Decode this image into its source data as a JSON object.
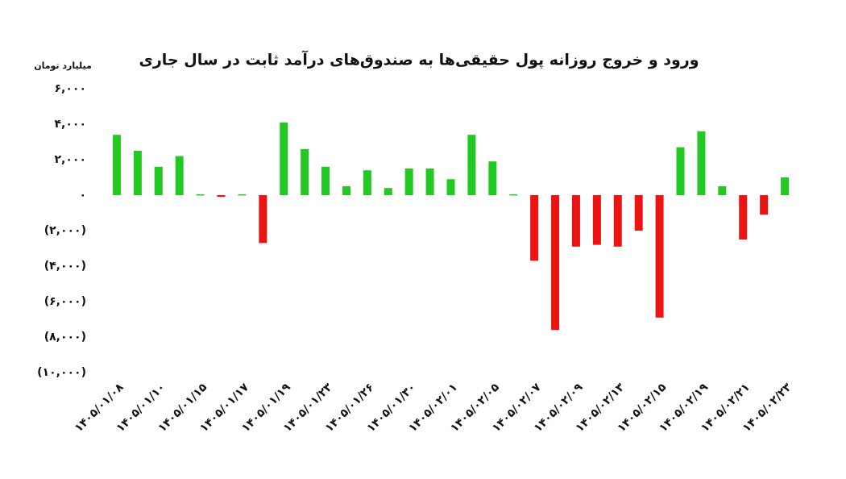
{
  "chart_data": {
    "type": "bar",
    "title": "ورود و خروج روزانه پول حقیقی‌ها به صندوق‌های درآمد ثابت در سال جاری",
    "y_label": "میلیارد تومان",
    "categories": [
      "۱۴۰۵/۰۱/۰۸",
      null,
      "۱۴۰۵/۰۱/۱۰",
      null,
      "۱۴۰۵/۰۱/۱۵",
      null,
      "۱۴۰۵/۰۱/۱۷",
      null,
      "۱۴۰۵/۰۱/۱۹",
      null,
      "۱۴۰۵/۰۱/۲۳",
      null,
      "۱۴۰۵/۰۱/۲۶",
      null,
      "۱۴۰۵/۰۱/۳۰",
      null,
      "۱۴۰۵/۰۲/۰۱",
      null,
      "۱۴۰۵/۰۲/۰۵",
      null,
      "۱۴۰۵/۰۲/۰۷",
      null,
      "۱۴۰۵/۰۲/۰۹",
      null,
      "۱۴۰۵/۰۲/۱۳",
      null,
      "۱۴۰۵/۰۲/۱۵",
      null,
      "۱۴۰۵/۰۲/۱۹",
      null,
      "۱۴۰۵/۰۲/۲۱",
      null,
      "۱۴۰۵/۰۲/۲۳"
    ],
    "values": [
      3400,
      2500,
      1600,
      2200,
      50,
      -100,
      50,
      -2700,
      4100,
      2600,
      1600,
      500,
      1400,
      400,
      1500,
      1500,
      900,
      3400,
      1900,
      50,
      -3700,
      -7600,
      -2900,
      -2800,
      -2900,
      -2000,
      -6900,
      2700,
      3600,
      500,
      -2500,
      -1100,
      1000
    ],
    "colors": {
      "positive": "#22c922",
      "negative": "#ec1313"
    },
    "ylim": [
      -10000,
      6000
    ],
    "yticks": [
      {
        "value": -10000,
        "label": "(۱۰,۰۰۰)"
      },
      {
        "value": -8000,
        "label": "(۸,۰۰۰)"
      },
      {
        "value": -6000,
        "label": "(۶,۰۰۰)"
      },
      {
        "value": -4000,
        "label": "(۴,۰۰۰)"
      },
      {
        "value": -2000,
        "label": "(۲,۰۰۰)"
      },
      {
        "value": 0,
        "label": "۰"
      },
      {
        "value": 2000,
        "label": "۲,۰۰۰"
      },
      {
        "value": 4000,
        "label": "۴,۰۰۰"
      },
      {
        "value": 6000,
        "label": "۶,۰۰۰"
      }
    ],
    "grid": false
  }
}
